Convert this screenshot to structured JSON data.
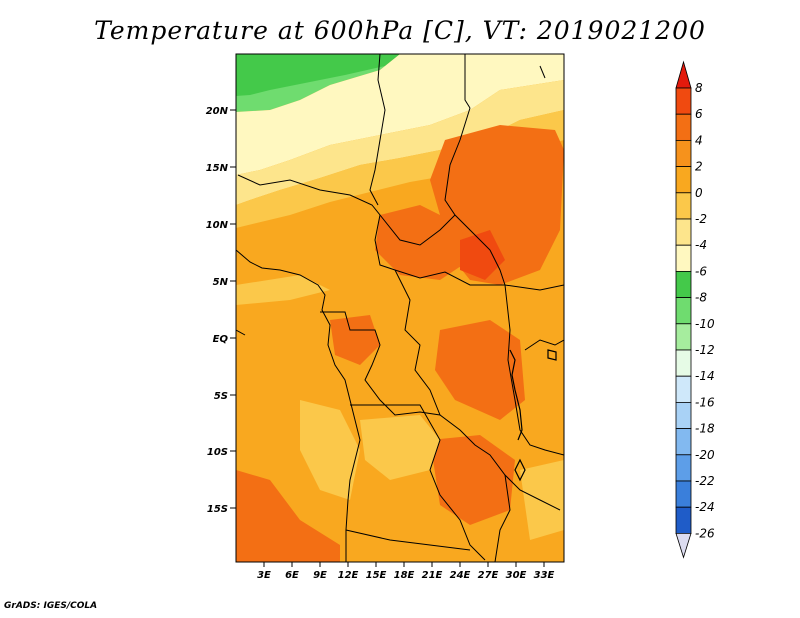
{
  "title": "Temperature at 600hPa [C], VT: 2019021200",
  "credit": "GrADS: IGES/COLA",
  "map": {
    "lon_ticks": [
      "3E",
      "6E",
      "9E",
      "12E",
      "15E",
      "18E",
      "21E",
      "24E",
      "27E",
      "30E",
      "33E"
    ],
    "lat_ticks": [
      "20N",
      "15N",
      "10N",
      "5N",
      "EQ",
      "5S",
      "10S",
      "15S"
    ]
  },
  "colorbar": {
    "labels": [
      "8",
      "6",
      "4",
      "2",
      "0",
      "-2",
      "-4",
      "-6",
      "-8",
      "-10",
      "-12",
      "-14",
      "-16",
      "-18",
      "-20",
      "-22",
      "-24",
      "-26"
    ],
    "colors_top_to_bottom": [
      "#e31a0c",
      "#f04a10",
      "#f36f14",
      "#f6921c",
      "#f9a81f",
      "#fbc84a",
      "#fde58c",
      "#fff8c0",
      "#44c94a",
      "#6fdc6f",
      "#a6ed9e",
      "#e6fbe6",
      "#cfe8fa",
      "#a9d2f6",
      "#82b9f0",
      "#5d9ee8",
      "#3a7fdb",
      "#1f5cc8",
      "#133fa3",
      "#0a1d6e",
      "#dcdcf0"
    ]
  }
}
